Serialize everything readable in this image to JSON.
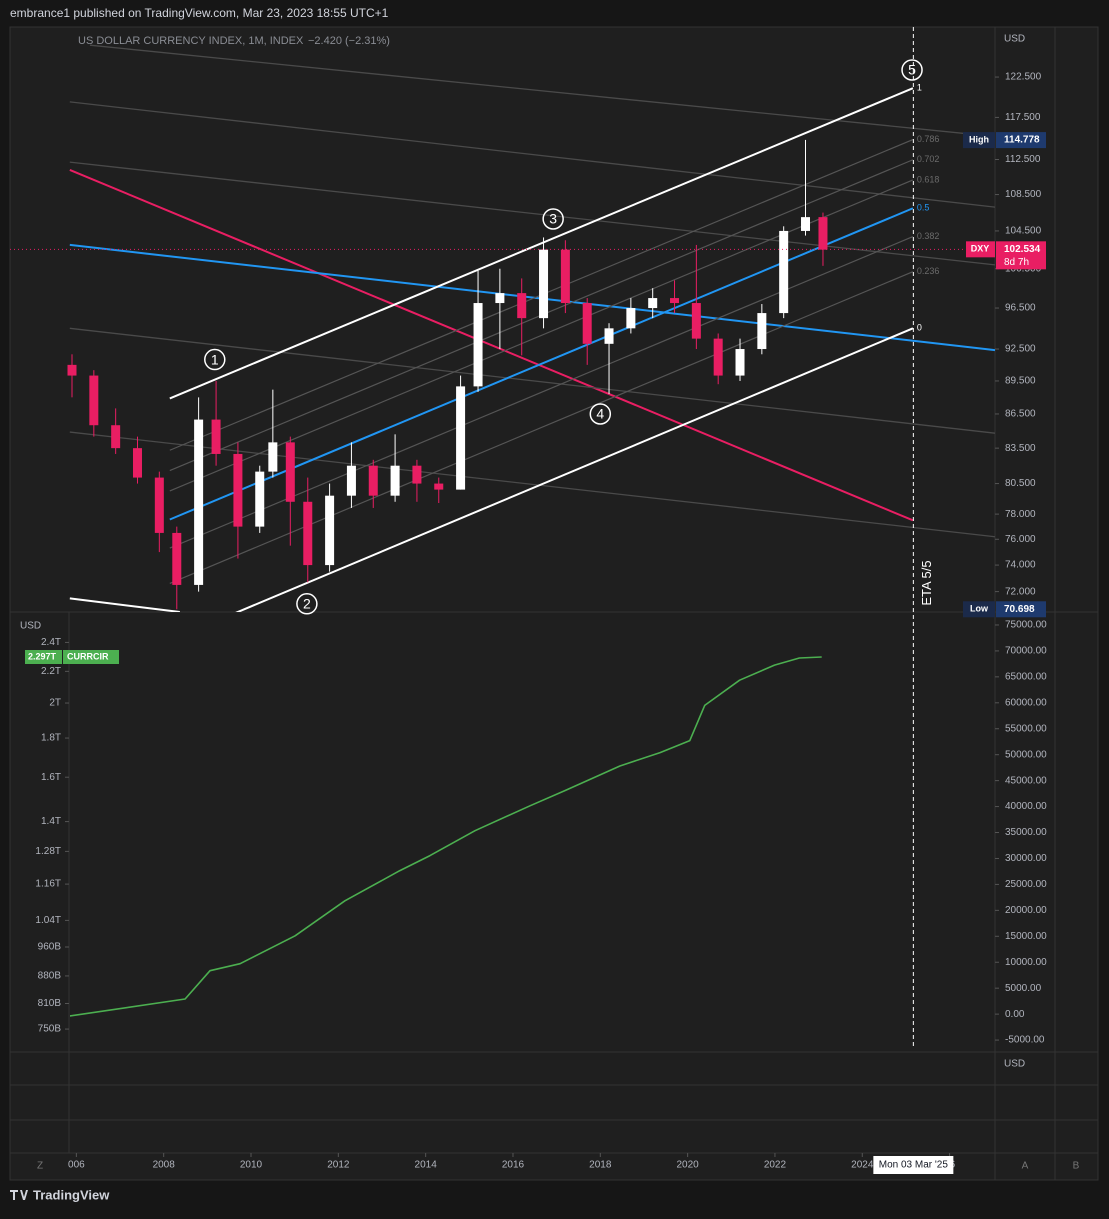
{
  "header": {
    "publisher": "embrance1 published on TradingView.com, Mar 23, 2023 18:55 UTC+1",
    "brand": "TradingView",
    "left_button": "Z",
    "right_buttons": [
      "A",
      "B"
    ],
    "lower_unit": "USD"
  },
  "chart_data": [
    {
      "type": "candlestick",
      "title": "US DOLLAR CURRENCY INDEX, 1M, INDEX",
      "change": "−2.420 (−2.31%)",
      "y_unit": "USD",
      "log_scale": true,
      "up_color": "#ffffff",
      "down_color": "#e91e63",
      "xlim": [
        2004.48,
        2027.04
      ],
      "xticks": [
        {
          "value": 2006,
          "label": "006"
        },
        2008,
        2010,
        2012,
        2014,
        2016,
        2018,
        2020,
        2022,
        2024,
        {
          "value": 2026,
          "label": "26"
        }
      ],
      "ylim": [
        70.5,
        129
      ],
      "yticks": [
        {
          "value": 122.5,
          "label": "122.500"
        },
        {
          "value": 117.5,
          "label": "117.500"
        },
        {
          "value": 112.5,
          "label": "112.500"
        },
        {
          "value": 108.5,
          "label": "108.500"
        },
        {
          "value": 104.5,
          "label": "104.500"
        },
        {
          "value": 100.5,
          "label": "100.500"
        },
        {
          "value": 96.5,
          "label": "96.500"
        },
        {
          "value": 92.5,
          "label": "92.500"
        },
        {
          "value": 89.5,
          "label": "89.500"
        },
        {
          "value": 86.5,
          "label": "86.500"
        },
        {
          "value": 83.5,
          "label": "83.500"
        },
        {
          "value": 80.5,
          "label": "80.500"
        },
        {
          "value": 78,
          "label": "78.000"
        },
        {
          "value": 76,
          "label": "76.000"
        },
        {
          "value": 74,
          "label": "74.000"
        },
        {
          "value": 72,
          "label": "72.000"
        }
      ],
      "x": [
        2005.9,
        2006.4,
        2006.9,
        2007.4,
        2007.9,
        2008.3,
        2008.8,
        2009.2,
        2009.7,
        2010.2,
        2010.5,
        2010.9,
        2011.3,
        2011.8,
        2012.3,
        2012.8,
        2013.3,
        2013.8,
        2014.3,
        2014.8,
        2015.2,
        2015.7,
        2016.2,
        2016.7,
        2017.2,
        2017.7,
        2018.2,
        2018.7,
        2019.2,
        2019.7,
        2020.2,
        2020.7,
        2021.2,
        2021.7,
        2022.2,
        2022.7,
        2023.1
      ],
      "open": [
        91,
        90,
        85.5,
        83.5,
        81,
        76.5,
        72.5,
        86,
        83,
        77,
        81.5,
        84,
        79,
        74,
        79.5,
        82,
        79.5,
        82,
        80.5,
        80,
        89,
        97,
        98,
        95.5,
        102.5,
        97,
        93,
        94.5,
        96.5,
        97.5,
        97,
        93.5,
        90,
        92.5,
        96,
        104.5,
        106
      ],
      "high": [
        92,
        90.5,
        87,
        84.5,
        81.5,
        77,
        88,
        89.5,
        84,
        82,
        88.7,
        84.5,
        81,
        80.5,
        84,
        82.5,
        84.7,
        82.5,
        81,
        90,
        100.3,
        100.5,
        99.5,
        103.8,
        103.5,
        97.5,
        95,
        97.5,
        98.5,
        99.3,
        103,
        94,
        93.5,
        96.9,
        105,
        114.8,
        106.5
      ],
      "low": [
        88,
        84.5,
        83,
        80.5,
        75,
        70.7,
        72,
        82,
        74.5,
        76.5,
        81,
        75.5,
        72.7,
        73.5,
        78.5,
        78.5,
        79,
        79,
        78.9,
        80,
        88.5,
        92.5,
        91.9,
        94.5,
        96,
        91,
        88.3,
        94,
        95.5,
        96,
        92.5,
        89.2,
        89.5,
        92,
        95.5,
        104,
        100.8
      ],
      "close": [
        90,
        85.5,
        83.5,
        81,
        76.5,
        72.5,
        86,
        83,
        77,
        81.5,
        84,
        79,
        74,
        79.5,
        82,
        79.5,
        82,
        80.5,
        80,
        89,
        97,
        98,
        95.5,
        102.5,
        97,
        93,
        94.5,
        96.5,
        97.5,
        97,
        93.5,
        90,
        92.5,
        96,
        104.5,
        106,
        102.5
      ],
      "markers": [
        {
          "label": "High",
          "value": 114.778
        },
        {
          "label": "Low",
          "value": 70.698
        }
      ],
      "last": {
        "label": "DXY",
        "value": 102.534,
        "countdown": "8d 7h",
        "color": "#e91e63"
      },
      "channel": {
        "upper": {
          "x1": 2008.14,
          "y1": 87.9,
          "x2": 2025.16,
          "y2": 121.1
        },
        "lower": {
          "x1": 2008.14,
          "y1": 68.45,
          "x2": 2025.16,
          "y2": 94.5
        }
      },
      "fib": {
        "levels": [
          1,
          0.786,
          0.702,
          0.618,
          0.5,
          0.382,
          0.236,
          0
        ],
        "colors": [
          "#ffffff",
          "#555555",
          "#555555",
          "#555555",
          "#2196f3",
          "#555555",
          "#555555",
          "#ffffff"
        ]
      },
      "lines": [
        {
          "x1": 2005.85,
          "y1": 71.5,
          "x2": 2008.37,
          "y2": 70.5,
          "color": "#ffffff"
        },
        {
          "x1": 2005.85,
          "y1": 111.3,
          "x2": 2025.16,
          "y2": 77.5,
          "color": "#e91e63"
        },
        {
          "x1": 2005.85,
          "y1": 103.0,
          "x2": 2027.04,
          "y2": 92.4,
          "color": "#2196f3"
        },
        {
          "x1": 2006.31,
          "y1": 126.6,
          "x2": 2027.04,
          "y2": 115.2,
          "color": "#4a4a4a"
        },
        {
          "x1": 2005.85,
          "y1": 119.4,
          "x2": 2027.04,
          "y2": 107.1,
          "color": "#4a4a4a"
        },
        {
          "x1": 2005.85,
          "y1": 112.2,
          "x2": 2027.04,
          "y2": 100.9,
          "color": "#4a4a4a"
        },
        {
          "x1": 2005.85,
          "y1": 94.5,
          "x2": 2027.04,
          "y2": 84.8,
          "color": "#4a4a4a"
        },
        {
          "x1": 2005.85,
          "y1": 84.9,
          "x2": 2027.04,
          "y2": 76.2,
          "color": "#4a4a4a"
        }
      ],
      "waves": [
        {
          "label": "1",
          "x": 2009.17,
          "y": 91.5
        },
        {
          "label": "2",
          "x": 2011.28,
          "y": 71.1
        },
        {
          "label": "3",
          "x": 2016.92,
          "y": 105.8
        },
        {
          "label": "4",
          "x": 2018.0,
          "y": 86.5
        },
        {
          "label": "5",
          "x": 2025.14,
          "y": 123.4
        }
      ],
      "vline": {
        "x": 2025.17,
        "label": "ETA 5/5",
        "date_label": "Mon 03 Mar '25"
      }
    },
    {
      "type": "line",
      "log_scale": true,
      "xlim": [
        2004.48,
        2027.04
      ],
      "ylim": [
        700000000000,
        2630000000000
      ],
      "yticks": [
        {
          "value": 2400000000000,
          "label": "2.4T"
        },
        {
          "value": 2200000000000,
          "label": "2.2T"
        },
        {
          "value": 2000000000000,
          "label": "2T"
        },
        {
          "value": 1800000000000,
          "label": "1.8T"
        },
        {
          "value": 1600000000000,
          "label": "1.6T"
        },
        {
          "value": 1400000000000,
          "label": "1.4T"
        },
        {
          "value": 1280000000000,
          "label": "1.28T"
        },
        {
          "value": 1160000000000,
          "label": "1.16T"
        },
        {
          "value": 1040000000000,
          "label": "1.04T"
        },
        {
          "value": 960000000000,
          "label": "960B"
        },
        {
          "value": 880000000000,
          "label": "880B"
        },
        {
          "value": 810000000000,
          "label": "810B"
        },
        {
          "value": 750000000000,
          "label": "750B"
        }
      ],
      "y_unit": "USD",
      "y2lim": [
        -7300,
        77500
      ],
      "y2ticks": [
        {
          "value": 75000,
          "label": "75000.00"
        },
        {
          "value": 70000,
          "label": "70000.00"
        },
        {
          "value": 65000,
          "label": "65000.00"
        },
        {
          "value": 60000,
          "label": "60000.00"
        },
        {
          "value": 55000,
          "label": "55000.00"
        },
        {
          "value": 50000,
          "label": "50000.00"
        },
        {
          "value": 45000,
          "label": "45000.00"
        },
        {
          "value": 40000,
          "label": "40000.00"
        },
        {
          "value": 35000,
          "label": "35000.00"
        },
        {
          "value": 30000,
          "label": "30000.00"
        },
        {
          "value": 25000,
          "label": "25000.00"
        },
        {
          "value": 20000,
          "label": "20000.00"
        },
        {
          "value": 15000,
          "label": "15000.00"
        },
        {
          "value": 10000,
          "label": "10000.00"
        },
        {
          "value": 5000,
          "label": "5000.00"
        },
        {
          "value": 0,
          "label": "0.00"
        },
        {
          "value": -5000,
          "label": "-5000.00"
        }
      ],
      "x": [
        2005.85,
        2008.49,
        2009.06,
        2009.75,
        2011.01,
        2012.15,
        2013.41,
        2014.1,
        2015.13,
        2016.39,
        2017.19,
        2018.45,
        2019.37,
        2020.05,
        2020.39,
        2021.19,
        2021.99,
        2022.56,
        2023.07
      ],
      "series": [
        {
          "name": "CURRCIR",
          "color": "#4caf50",
          "values": [
            780000000000,
            821000000000,
            894000000000,
            913000000000,
            993000000000,
            1103000000000,
            1208000000000,
            1264000000000,
            1362000000000,
            1468000000000,
            1537000000000,
            1655000000000,
            1723000000000,
            1786000000000,
            1986000000000,
            2142000000000,
            2242000000000,
            2290000000000,
            2297000000000
          ],
          "value_labels": [
            null,
            null,
            null,
            null,
            null,
            null,
            null,
            null,
            null,
            null,
            null,
            null,
            null,
            null,
            null,
            null,
            null,
            null,
            "2.297T"
          ]
        }
      ]
    }
  ]
}
